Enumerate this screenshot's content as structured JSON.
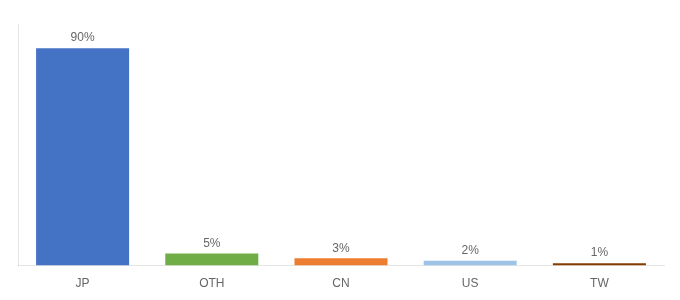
{
  "chart_data": {
    "type": "bar",
    "categories": [
      "JP",
      "OTH",
      "CN",
      "US",
      "TW"
    ],
    "values": [
      90,
      5,
      3,
      2,
      1
    ],
    "value_labels": [
      "90%",
      "5%",
      "3%",
      "2%",
      "1%"
    ],
    "colors": [
      "#4472C4",
      "#70AD47",
      "#ED7D31",
      "#9DC3E6",
      "#833C00"
    ],
    "ylim": [
      0,
      100
    ],
    "grid": false,
    "data_labels": true,
    "tick_labels": "x"
  }
}
